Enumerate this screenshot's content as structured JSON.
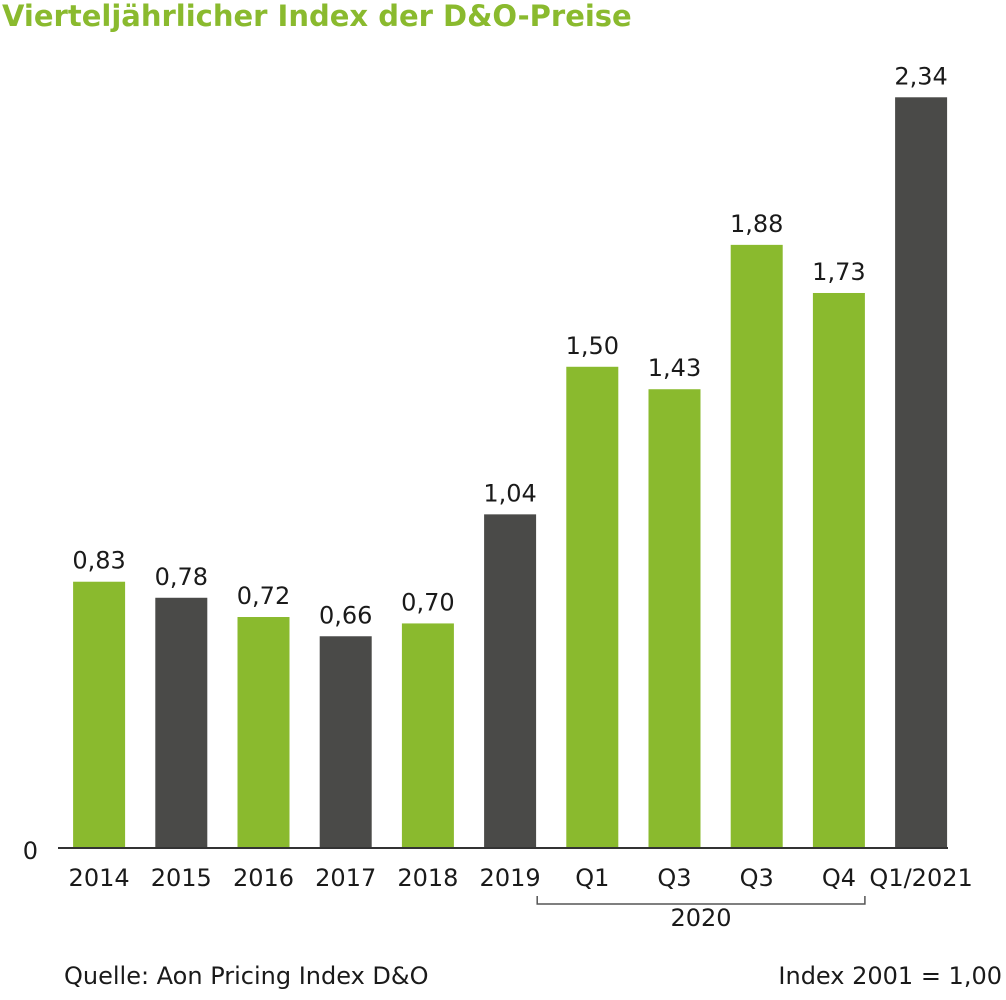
{
  "chart_data": {
    "type": "bar",
    "title": "Vierteljährlicher Index der D&O-Preise",
    "categories": [
      "2014",
      "2015",
      "2016",
      "2017",
      "2018",
      "2019",
      "Q1",
      "Q3",
      "Q3",
      "Q4",
      "Q1/2021"
    ],
    "values": [
      0.83,
      0.78,
      0.72,
      0.66,
      0.7,
      1.04,
      1.5,
      1.43,
      1.88,
      1.73,
      2.34
    ],
    "value_labels": [
      "0,83",
      "0,78",
      "0,72",
      "0,66",
      "0,70",
      "1,04",
      "1,50",
      "1,43",
      "1,88",
      "1,73",
      "2,34"
    ],
    "colors": [
      "#8aba2e",
      "#4a4a48",
      "#8aba2e",
      "#4a4a48",
      "#8aba2e",
      "#4a4a48",
      "#8aba2e",
      "#8aba2e",
      "#8aba2e",
      "#8aba2e",
      "#4a4a48"
    ],
    "group_label": "2020",
    "ylim": [
      0,
      2.45
    ],
    "yticks": [
      0
    ],
    "grid": false,
    "source": "Quelle: Aon Pricing Index D&O",
    "note": "Index 2001 = 1,00"
  }
}
